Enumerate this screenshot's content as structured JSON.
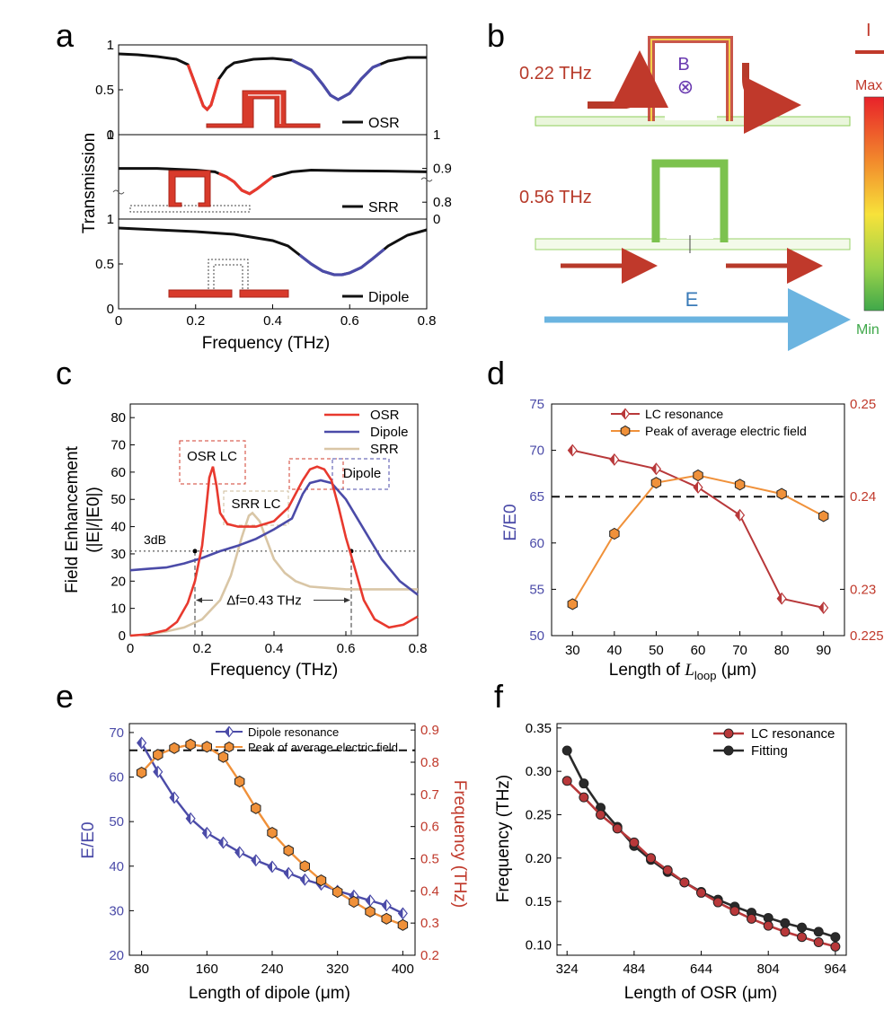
{
  "figure": {
    "panel_letters": [
      "a",
      "b",
      "c",
      "d",
      "e",
      "f"
    ]
  },
  "chart_data": [
    {
      "id": "a",
      "type": "line",
      "xlabel": "Frequency (THz)",
      "ylabel": "Transmission",
      "xlim": [
        0,
        0.8
      ],
      "x_ticks": [
        "0",
        "0.2",
        "0.4",
        "0.6",
        "0.8"
      ],
      "subplots": [
        {
          "label": "OSR",
          "ylim": [
            0,
            1
          ],
          "ticks_left": [
            "1",
            "0.5",
            "0"
          ],
          "x": [
            0,
            0.05,
            0.1,
            0.15,
            0.18,
            0.2,
            0.22,
            0.23,
            0.24,
            0.26,
            0.28,
            0.3,
            0.35,
            0.4,
            0.45,
            0.5,
            0.53,
            0.55,
            0.57,
            0.6,
            0.63,
            0.66,
            0.7,
            0.75,
            0.8
          ],
          "y": [
            0.9,
            0.89,
            0.87,
            0.84,
            0.78,
            0.55,
            0.32,
            0.28,
            0.33,
            0.62,
            0.74,
            0.8,
            0.84,
            0.85,
            0.83,
            0.72,
            0.56,
            0.44,
            0.39,
            0.46,
            0.62,
            0.75,
            0.82,
            0.86,
            0.86
          ],
          "highlights": [
            {
              "from": 0.18,
              "to": 0.26,
              "color": "#e8392e"
            },
            {
              "from": 0.45,
              "to": 0.68,
              "color": "#4b4ba8"
            }
          ]
        },
        {
          "label": "SRR",
          "ylim": [
            0.75,
            1
          ],
          "ticks_right": [
            "1",
            "0.9",
            "0.8"
          ],
          "ticks_left": [
            "1"
          ],
          "x": [
            0,
            0.1,
            0.2,
            0.25,
            0.28,
            0.3,
            0.32,
            0.34,
            0.36,
            0.4,
            0.45,
            0.5,
            0.6,
            0.7,
            0.8
          ],
          "y": [
            0.9,
            0.9,
            0.895,
            0.89,
            0.875,
            0.86,
            0.835,
            0.825,
            0.84,
            0.875,
            0.89,
            0.895,
            0.893,
            0.892,
            0.89
          ],
          "highlights": [
            {
              "from": 0.26,
              "to": 0.4,
              "color": "#e8392e"
            }
          ]
        },
        {
          "label": "Dipole",
          "ylim": [
            0,
            1
          ],
          "ticks_left": [
            "1",
            "0.5",
            "0"
          ],
          "ticks_right": [
            "0"
          ],
          "x": [
            0,
            0.1,
            0.2,
            0.3,
            0.4,
            0.44,
            0.47,
            0.5,
            0.53,
            0.56,
            0.58,
            0.6,
            0.63,
            0.66,
            0.7,
            0.75,
            0.8
          ],
          "y": [
            0.9,
            0.88,
            0.86,
            0.83,
            0.76,
            0.7,
            0.6,
            0.5,
            0.42,
            0.38,
            0.38,
            0.4,
            0.46,
            0.56,
            0.7,
            0.82,
            0.88
          ],
          "highlights": [
            {
              "from": 0.47,
              "to": 0.69,
              "color": "#4b4ba8"
            }
          ]
        }
      ]
    },
    {
      "id": "b",
      "type": "other",
      "labels": {
        "f1": "0.22 THz",
        "f2": "0.56 THz",
        "b_field": "B",
        "b_symbol": "⊗",
        "e_field": "E",
        "current": "I",
        "max": "Max",
        "min": "Min"
      }
    },
    {
      "id": "c",
      "type": "line",
      "xlabel": "Frequency (THz)",
      "ylabel_line1": "Field Enhancement",
      "ylabel_line2": "(|E|/|E0|)",
      "xlim": [
        0,
        0.8
      ],
      "ylim": [
        0,
        85
      ],
      "x_ticks": [
        "0",
        "0.2",
        "0.4",
        "0.6",
        "0.8"
      ],
      "y_ticks": [
        "0",
        "10",
        "20",
        "30",
        "40",
        "50",
        "60",
        "70",
        "80"
      ],
      "legend": [
        "OSR",
        "Dipole",
        "SRR"
      ],
      "annotations": {
        "osr_lc": "OSR LC",
        "srr_lc": "SRR LC",
        "dipole": "Dipole",
        "three_db": "3dB",
        "delta_f": "Δf=0.43 THz"
      },
      "threshold_y": 31,
      "series": [
        {
          "name": "OSR",
          "color": "#e8392e",
          "x": [
            0,
            0.05,
            0.1,
            0.13,
            0.16,
            0.18,
            0.2,
            0.21,
            0.22,
            0.23,
            0.24,
            0.25,
            0.27,
            0.3,
            0.35,
            0.4,
            0.44,
            0.48,
            0.5,
            0.52,
            0.54,
            0.56,
            0.58,
            0.6,
            0.62,
            0.65,
            0.68,
            0.72,
            0.76,
            0.8
          ],
          "y": [
            0,
            0.5,
            2,
            5,
            12,
            20,
            33,
            45,
            58,
            62,
            55,
            45,
            41,
            40,
            40,
            42,
            47,
            57,
            61,
            62,
            61,
            57,
            47,
            36,
            27,
            13,
            6,
            3,
            4,
            7
          ]
        },
        {
          "name": "Dipole",
          "color": "#4b4ba8",
          "x": [
            0,
            0.05,
            0.1,
            0.15,
            0.2,
            0.25,
            0.3,
            0.35,
            0.4,
            0.45,
            0.48,
            0.5,
            0.53,
            0.56,
            0.6,
            0.65,
            0.7,
            0.75,
            0.8
          ],
          "y": [
            24,
            24.5,
            25,
            26.5,
            28.5,
            31,
            33,
            35.5,
            39,
            43,
            52,
            56,
            57,
            56,
            50,
            39,
            28,
            20,
            15
          ]
        },
        {
          "name": "SRR",
          "color": "#d9c6a6",
          "x": [
            0,
            0.05,
            0.1,
            0.15,
            0.2,
            0.25,
            0.28,
            0.31,
            0.33,
            0.34,
            0.36,
            0.38,
            0.4,
            0.43,
            0.46,
            0.5,
            0.55,
            0.6,
            0.65,
            0.7,
            0.8
          ],
          "y": [
            0,
            0.5,
            1.5,
            3,
            6,
            13,
            22,
            36,
            44,
            45,
            42,
            35,
            28,
            23,
            20,
            18,
            17.5,
            17,
            17,
            17,
            17
          ]
        }
      ]
    },
    {
      "id": "d",
      "type": "line",
      "xlabel_prefix": "Length of ",
      "xlabel_var": "L",
      "xlabel_sub": "loop",
      "xlabel_unit": " (μm)",
      "ylabel_left": "E/E0",
      "xlim": [
        25,
        95
      ],
      "ylim_left": [
        50,
        75
      ],
      "ylim_right": [
        0.225,
        0.25
      ],
      "x_ticks": [
        "30",
        "40",
        "50",
        "60",
        "70",
        "80",
        "90"
      ],
      "y_ticks_left": [
        "50",
        "55",
        "60",
        "65",
        "70",
        "75"
      ],
      "y_ticks_right": [
        "0.225",
        "0.23",
        "0.24",
        "0.25"
      ],
      "threshold_y": 65,
      "series": [
        {
          "name": "LC resonance",
          "axis": "right",
          "color": "#b8383a",
          "marker": "diamond",
          "x": [
            30,
            40,
            50,
            60,
            70,
            80,
            90
          ],
          "y": [
            0.245,
            0.244,
            0.243,
            0.241,
            0.238,
            0.229,
            0.228
          ]
        },
        {
          "name": "Peak of average electric field",
          "axis": "left",
          "color": "#f0913a",
          "marker": "hexagon",
          "x": [
            30,
            40,
            50,
            60,
            70,
            80,
            90
          ],
          "y": [
            53.4,
            61,
            66.5,
            67.3,
            66.3,
            65.3,
            62.9
          ]
        }
      ]
    },
    {
      "id": "e",
      "type": "line",
      "xlabel": "Length of dipole (μm)",
      "ylabel_left": "E/E0",
      "ylabel_right": "Frequency (THz)",
      "xlim": [
        65,
        415
      ],
      "ylim_left": [
        20,
        72
      ],
      "ylim_right": [
        0.2,
        0.92
      ],
      "x_ticks": [
        "80",
        "160",
        "240",
        "320",
        "400"
      ],
      "y_ticks_left": [
        "20",
        "30",
        "40",
        "50",
        "60",
        "70"
      ],
      "y_ticks_right": [
        "0.2",
        "0.3",
        "0.4",
        "0.5",
        "0.6",
        "0.7",
        "0.8",
        "0.9"
      ],
      "threshold_y": 66,
      "series": [
        {
          "name": "Dipole resonance",
          "axis": "right",
          "color": "#4b4ba8",
          "marker": "diamond",
          "x": [
            80,
            100,
            120,
            140,
            160,
            180,
            200,
            220,
            240,
            260,
            280,
            300,
            320,
            340,
            360,
            380,
            400
          ],
          "y": [
            0.86,
            0.77,
            0.69,
            0.625,
            0.58,
            0.55,
            0.52,
            0.495,
            0.475,
            0.455,
            0.435,
            0.42,
            0.4,
            0.385,
            0.37,
            0.355,
            0.33
          ]
        },
        {
          "name": "Peak of average electric field",
          "axis": "left",
          "color": "#f0913a",
          "marker": "hexagon",
          "x": [
            80,
            100,
            120,
            140,
            160,
            180,
            200,
            220,
            240,
            260,
            280,
            300,
            320,
            340,
            360,
            380,
            400
          ],
          "y": [
            61,
            65,
            66.5,
            67.3,
            66.8,
            64.5,
            59,
            53,
            47.5,
            43.5,
            40,
            36.8,
            34.2,
            32,
            29.8,
            28.2,
            26.8
          ]
        }
      ]
    },
    {
      "id": "f",
      "type": "line",
      "xlabel": "Length of OSR (μm)",
      "ylabel": "Frequency (THz)",
      "xlim": [
        300,
        990
      ],
      "ylim": [
        0.088,
        0.355
      ],
      "x_ticks": [
        "324",
        "484",
        "644",
        "804",
        "964"
      ],
      "y_ticks": [
        "0.10",
        "0.15",
        "0.20",
        "0.25",
        "0.30",
        "0.35"
      ],
      "series": [
        {
          "name": "LC resonance",
          "color": "#b8383a",
          "marker": "circle",
          "x": [
            324,
            364,
            404,
            444,
            484,
            524,
            564,
            604,
            644,
            684,
            724,
            764,
            804,
            844,
            884,
            924,
            964
          ],
          "y": [
            0.289,
            0.27,
            0.25,
            0.234,
            0.218,
            0.2,
            0.186,
            0.172,
            0.16,
            0.149,
            0.139,
            0.13,
            0.122,
            0.115,
            0.109,
            0.103,
            0.098
          ]
        },
        {
          "name": "Fitting",
          "color": "#2a2a2a",
          "marker": "circle",
          "x": [
            324,
            364,
            404,
            444,
            484,
            524,
            564,
            604,
            644,
            684,
            724,
            764,
            804,
            844,
            884,
            924,
            964
          ],
          "y": [
            0.324,
            0.286,
            0.258,
            0.236,
            0.214,
            0.198,
            0.184,
            0.172,
            0.161,
            0.152,
            0.144,
            0.137,
            0.131,
            0.125,
            0.12,
            0.115,
            0.109
          ]
        }
      ]
    }
  ]
}
